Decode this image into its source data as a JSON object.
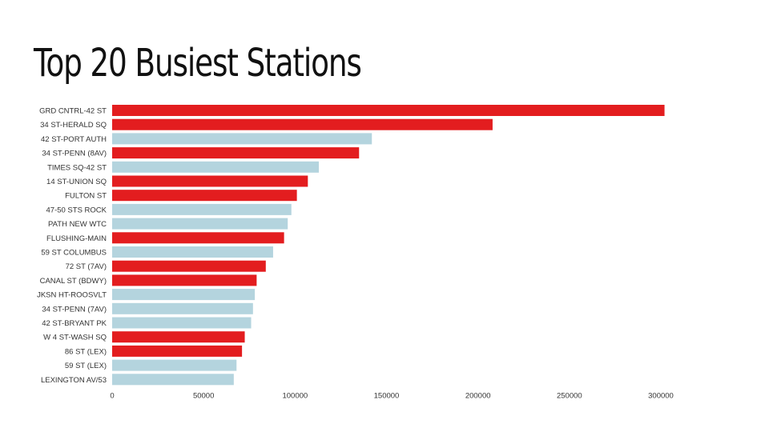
{
  "slide": {
    "title": "Top 20 Busiest Stations"
  },
  "colors": {
    "highlight": "#e31d1f",
    "normal": "#b4d4de",
    "text": "#333333"
  },
  "chart_data": {
    "type": "bar",
    "orientation": "horizontal",
    "title": "",
    "xlabel": "",
    "ylabel": "",
    "xlim": [
      0,
      300000
    ],
    "xticks": [
      0,
      50000,
      100000,
      150000,
      200000,
      250000,
      300000
    ],
    "xtick_labels": [
      "0",
      "50000",
      "100000",
      "150000",
      "200000",
      "250000",
      "300000"
    ],
    "grid": false,
    "legend": "none",
    "categories": [
      "GRD CNTRL-42 ST",
      "34 ST-HERALD SQ",
      "42 ST-PORT AUTH",
      "34 ST-PENN (8AV)",
      "TIMES SQ-42 ST",
      "14 ST-UNION SQ",
      "FULTON ST",
      "47-50 STS ROCK",
      "PATH NEW WTC",
      "FLUSHING-MAIN",
      "59 ST COLUMBUS",
      "72 ST (7AV)",
      "CANAL ST (BDWY)",
      "JKSN HT-ROOSVLT",
      "34 ST-PENN (7AV)",
      "42 ST-BRYANT PK",
      "W 4 ST-WASH SQ",
      "86 ST (LEX)",
      "59 ST (LEX)",
      "LEXINGTON AV/53"
    ],
    "values": [
      302000,
      208000,
      142000,
      135000,
      113000,
      107000,
      101000,
      98000,
      96000,
      94000,
      88000,
      84000,
      79000,
      78000,
      77000,
      76000,
      72500,
      71000,
      68000,
      66500
    ],
    "highlighted": [
      true,
      true,
      false,
      true,
      false,
      true,
      true,
      false,
      false,
      true,
      false,
      true,
      true,
      false,
      false,
      false,
      true,
      true,
      false,
      false
    ]
  }
}
